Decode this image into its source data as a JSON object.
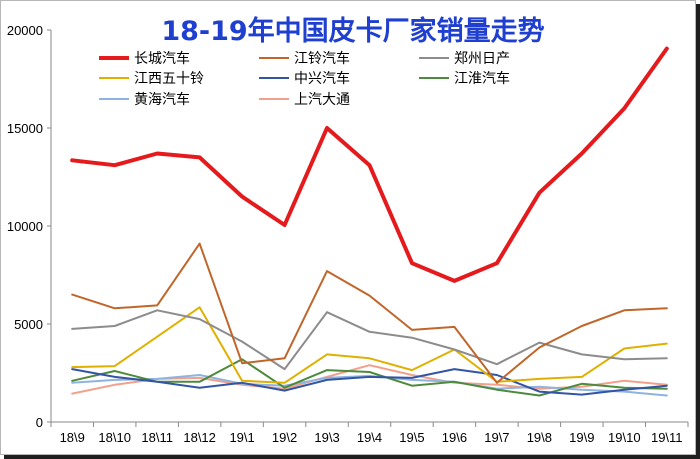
{
  "chart_data": {
    "type": "line",
    "title": "18-19年中国皮卡厂家销量走势",
    "categories": [
      "18\\9",
      "18\\10",
      "18\\11",
      "18\\12",
      "19\\1",
      "19\\2",
      "19\\3",
      "19\\4",
      "19\\5",
      "19\\6",
      "19\\7",
      "19\\8",
      "19\\9",
      "19\\10",
      "19\\11"
    ],
    "ylim": [
      0,
      20000
    ],
    "yticks": [
      0,
      5000,
      10000,
      15000,
      20000
    ],
    "grid": false,
    "legend_position": "top",
    "series": [
      {
        "name": "长城汽车",
        "color": "#e41a1c",
        "values": [
          13350,
          13100,
          13700,
          13500,
          11500,
          10050,
          15000,
          13100,
          8100,
          7200,
          8100,
          11700,
          13700,
          16000,
          19050
        ]
      },
      {
        "name": "江铃汽车",
        "color": "#c0662a",
        "values": [
          6500,
          5800,
          5950,
          9100,
          3000,
          3250,
          7700,
          6450,
          4700,
          4850,
          2000,
          3800,
          4900,
          5700,
          5800
        ]
      },
      {
        "name": "郑州日产",
        "color": "#8c8c8c",
        "values": [
          4750,
          4900,
          5700,
          5250,
          4100,
          2700,
          5600,
          4600,
          4300,
          3700,
          2950,
          4050,
          3450,
          3200,
          3250
        ]
      },
      {
        "name": "江西五十铃",
        "color": "#e0b000",
        "values": [
          2800,
          2850,
          4350,
          5850,
          2100,
          2000,
          3450,
          3250,
          2650,
          3700,
          2050,
          2200,
          2300,
          3750,
          4000
        ]
      },
      {
        "name": "中兴汽车",
        "color": "#3255a4",
        "values": [
          2700,
          2300,
          2050,
          1750,
          2000,
          1600,
          2150,
          2300,
          2250,
          2700,
          2400,
          1550,
          1400,
          1650,
          1850
        ]
      },
      {
        "name": "江淮汽车",
        "color": "#4e8a3c",
        "values": [
          2100,
          2600,
          2050,
          2050,
          3200,
          1750,
          2650,
          2550,
          1850,
          2050,
          1650,
          1350,
          1950,
          1750,
          1700
        ]
      },
      {
        "name": "黄海汽车",
        "color": "#8fb3e0",
        "values": [
          2000,
          2150,
          2200,
          2400,
          1950,
          1850,
          2250,
          2350,
          2150,
          2050,
          1700,
          1800,
          1650,
          1550,
          1350
        ]
      },
      {
        "name": "上汽大通",
        "color": "#f2a08a",
        "values": [
          1450,
          1900,
          2200,
          2250,
          1900,
          1700,
          2300,
          2900,
          2400,
          2000,
          1900,
          1700,
          1800,
          2100,
          1900
        ]
      }
    ]
  }
}
